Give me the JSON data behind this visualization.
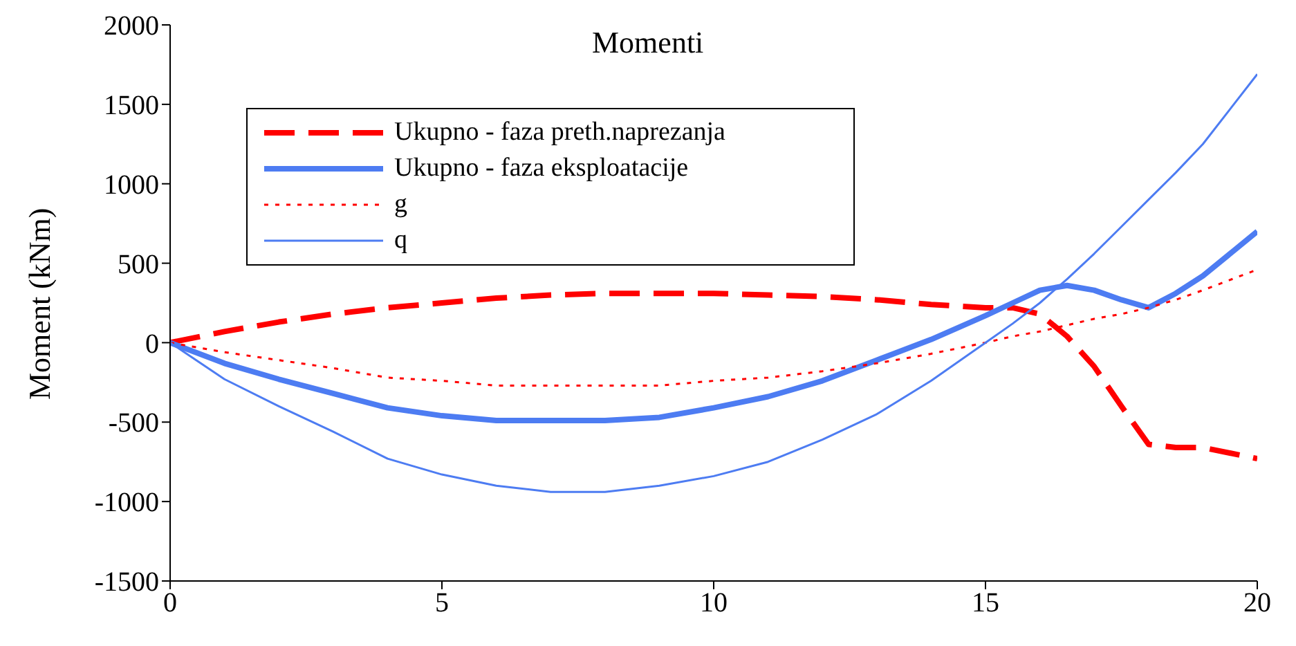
{
  "chart_data": {
    "type": "line",
    "title": "Momenti",
    "ylabel": "Moment (kNm)",
    "x": [
      0,
      1,
      2,
      3,
      4,
      5,
      6,
      7,
      8,
      9,
      10,
      11,
      12,
      13,
      14,
      15,
      15.5,
      16,
      16.5,
      17,
      17.5,
      18,
      18.5,
      19,
      20
    ],
    "series": [
      {
        "name": "Ukupno - faza preth.naprezanja",
        "color": "#ff0000",
        "line_style": "dashed",
        "values": [
          0,
          70,
          130,
          180,
          220,
          250,
          280,
          300,
          310,
          310,
          310,
          300,
          290,
          270,
          240,
          220,
          220,
          180,
          40,
          -150,
          -400,
          -640,
          -660,
          -660,
          -730
        ]
      },
      {
        "name": "Ukupno - faza eksploatacije",
        "color": "#4d7cf2",
        "line_style": "solid",
        "values": [
          0,
          -130,
          -230,
          -320,
          -410,
          -460,
          -490,
          -490,
          -490,
          -470,
          -410,
          -340,
          -240,
          -110,
          20,
          170,
          250,
          330,
          360,
          330,
          270,
          220,
          310,
          420,
          700
        ]
      },
      {
        "name": "g",
        "color": "#ff0000",
        "line_style": "dotted",
        "values": [
          0,
          -60,
          -110,
          -160,
          -220,
          -240,
          -270,
          -270,
          -270,
          -270,
          -240,
          -220,
          -180,
          -130,
          -70,
          0,
          40,
          70,
          110,
          150,
          180,
          220,
          270,
          330,
          460
        ]
      },
      {
        "name": "q",
        "color": "#4d7cf2",
        "line_style": "solid",
        "values": [
          0,
          -230,
          -400,
          -560,
          -730,
          -830,
          -900,
          -940,
          -940,
          -900,
          -840,
          -750,
          -610,
          -450,
          -240,
          0,
          120,
          250,
          400,
          560,
          730,
          900,
          1070,
          1250,
          1690
        ]
      }
    ],
    "xlim": [
      0,
      20
    ],
    "xticks": [
      0,
      5,
      10,
      15,
      20
    ],
    "ylim": [
      -1500,
      2000
    ],
    "yticks": [
      -1500,
      -1000,
      -500,
      0,
      500,
      1000,
      1500,
      2000
    ],
    "legend": "top left",
    "marker": "none"
  }
}
